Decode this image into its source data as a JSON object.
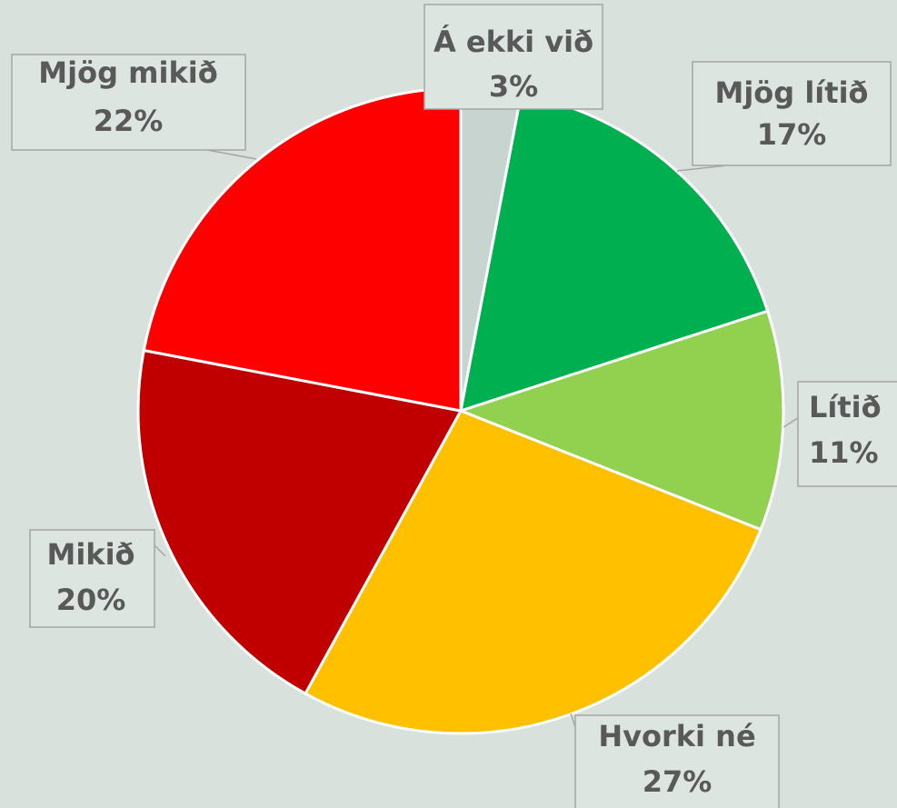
{
  "chart_data": {
    "type": "pie",
    "categories": [
      "Á ekki við",
      "Mjög lítið",
      "Lítið",
      "Hvorki né",
      "Mikið",
      "Mjög mikið"
    ],
    "values": [
      3,
      17,
      11,
      27,
      20,
      22
    ],
    "value_labels": [
      "3%",
      "17%",
      "11%",
      "27%",
      "20%",
      "22%"
    ],
    "colors": [
      "#c8d4cf",
      "#00b050",
      "#92d050",
      "#ffc000",
      "#c00000",
      "#ff0000"
    ]
  }
}
